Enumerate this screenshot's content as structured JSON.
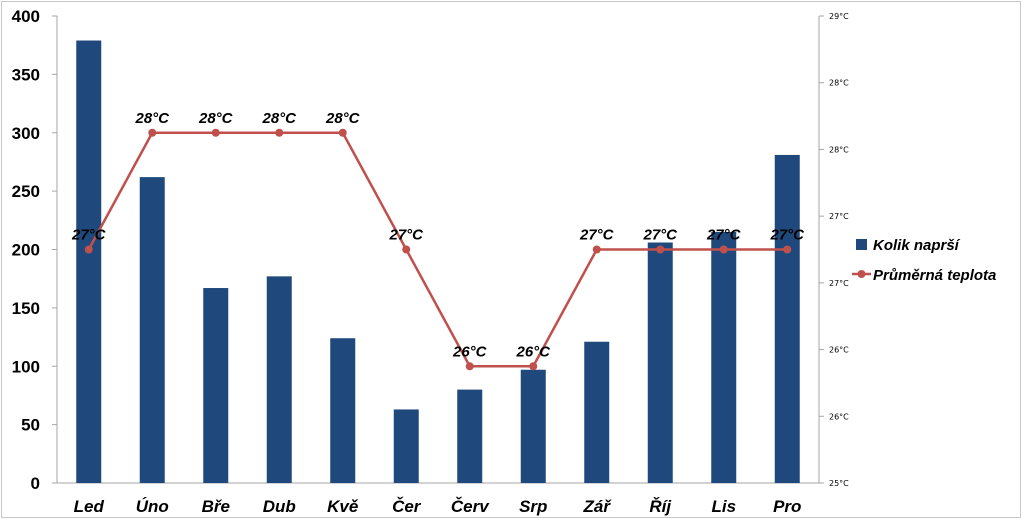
{
  "chart_data": {
    "type": "bar+line",
    "categories": [
      "Led",
      "Úno",
      "Bře",
      "Dub",
      "Kvě",
      "Čer",
      "Červ",
      "Srp",
      "Zář",
      "Říj",
      "Lis",
      "Pro"
    ],
    "series": [
      {
        "name": "Kolik naprší",
        "type": "bar",
        "axis": "left",
        "color": "#1f497d",
        "values": [
          379,
          262,
          167,
          177,
          124,
          63,
          80,
          97,
          121,
          206,
          215,
          281
        ]
      },
      {
        "name": "Průměrná teplota",
        "type": "line",
        "axis": "right",
        "color": "#c0504d",
        "values": [
          27,
          28,
          28,
          28,
          28,
          27,
          26,
          26,
          27,
          27,
          27,
          27
        ],
        "data_labels": [
          "27°C",
          "28°C",
          "28°C",
          "28°C",
          "28°C",
          "27°C",
          "26°C",
          "26°C",
          "27°C",
          "27°C",
          "27°C",
          "27°C"
        ]
      }
    ],
    "y_left": {
      "ylim": [
        0,
        400
      ],
      "tick_labels": [
        "0",
        "50",
        "100",
        "150",
        "200",
        "250",
        "300",
        "350",
        "400"
      ]
    },
    "y_right": {
      "ylim": [
        25,
        29
      ],
      "tick_labels": [
        "25°C",
        "26°C",
        "26°C",
        "27°C",
        "27°C",
        "28°C",
        "28°C",
        "29°C"
      ]
    },
    "legend": {
      "position": "right",
      "entries": [
        "Kolik naprší",
        "Průměrná teplota"
      ]
    },
    "grid": false
  }
}
